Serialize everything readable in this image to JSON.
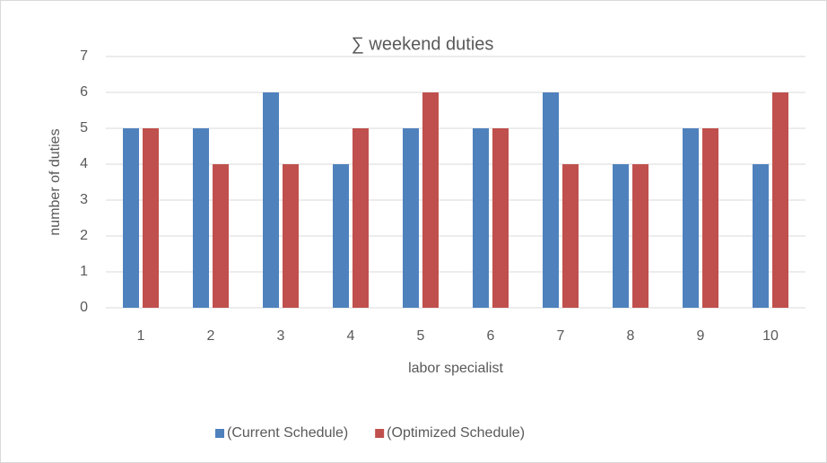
{
  "chart_data": {
    "type": "bar",
    "title": "∑  weekend duties",
    "x_label": "labor specialist",
    "y_label": "number of duties",
    "categories": [
      "1",
      "2",
      "3",
      "4",
      "5",
      "6",
      "7",
      "8",
      "9",
      "10"
    ],
    "series": [
      {
        "name": "(Current Schedule)",
        "color": "#4f81bd",
        "values": [
          5,
          5,
          6,
          4,
          5,
          5,
          6,
          4,
          5,
          4
        ]
      },
      {
        "name": "(Optimized Schedule)",
        "color": "#c0504d",
        "values": [
          5,
          4,
          4,
          5,
          6,
          5,
          4,
          4,
          5,
          6
        ]
      }
    ],
    "ylim": [
      0,
      7
    ],
    "yticks": [
      0,
      1,
      2,
      3,
      4,
      5,
      6,
      7
    ],
    "grid": true,
    "legend": "bottom"
  }
}
